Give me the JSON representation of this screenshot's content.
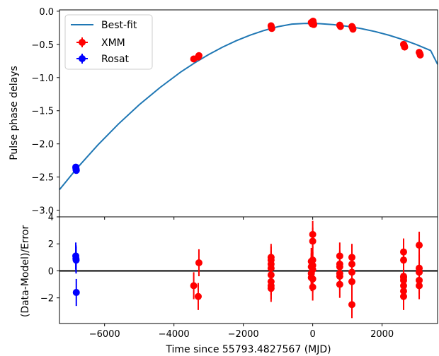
{
  "chart_data": [
    {
      "type": "scatter",
      "panel": "top",
      "title": "",
      "xlabel": "",
      "ylabel": "Pulse phase delays",
      "xlim": [
        -7300,
        3600
      ],
      "ylim": [
        -3.1,
        0.02
      ],
      "yticks": [
        0.0,
        -0.5,
        -1.0,
        -1.5,
        -2.0,
        -2.5,
        -3.0
      ],
      "ytick_labels": [
        "0.0",
        "−0.5",
        "−1.0",
        "−1.5",
        "−2.0",
        "−2.5",
        "−3.0"
      ],
      "legend": {
        "placement": "upper-left",
        "entries": [
          "Best-fit",
          "XMM",
          "Rosat"
        ]
      },
      "best_fit": {
        "name": "Best-fit",
        "color": "#1f77b4",
        "x": [
          -7300,
          -6800,
          -6200,
          -5600,
          -5000,
          -4400,
          -3800,
          -3400,
          -3000,
          -2600,
          -2200,
          -1800,
          -1400,
          -1000,
          -600,
          -200,
          0,
          200,
          600,
          1000,
          1400,
          1800,
          2200,
          2600,
          3000,
          3400,
          3600
        ],
        "y": [
          -2.69,
          -2.37,
          -2.02,
          -1.7,
          -1.41,
          -1.15,
          -0.915,
          -0.778,
          -0.654,
          -0.542,
          -0.444,
          -0.36,
          -0.29,
          -0.233,
          -0.194,
          -0.184,
          -0.185,
          -0.188,
          -0.202,
          -0.227,
          -0.262,
          -0.307,
          -0.362,
          -0.428,
          -0.505,
          -0.593,
          -0.8
        ]
      },
      "series": [
        {
          "name": "XMM",
          "color": "#ff0000",
          "x": [
            -3430,
            -3300,
            -3280,
            -1200,
            -1190,
            -1180,
            -40,
            -20,
            0,
            10,
            20,
            30,
            780,
            800,
            1130,
            1150,
            1160,
            2620,
            2640,
            2650,
            3070,
            3090,
            3100
          ],
          "y": [
            -0.72,
            -0.69,
            -0.67,
            -0.22,
            -0.24,
            -0.26,
            -0.17,
            -0.19,
            -0.16,
            -0.15,
            -0.18,
            -0.2,
            -0.21,
            -0.23,
            -0.23,
            -0.25,
            -0.27,
            -0.5,
            -0.52,
            -0.54,
            -0.62,
            -0.64,
            -0.66
          ]
        },
        {
          "name": "Rosat",
          "color": "#0000ff",
          "x": [
            -6830,
            -6825,
            -6820,
            -6815
          ],
          "y": [
            -2.35,
            -2.37,
            -2.39,
            -2.4
          ]
        }
      ]
    },
    {
      "type": "scatter",
      "panel": "bottom",
      "title": "",
      "xlabel": "Time since 55793.4827567 (MJD)",
      "ylabel": "(Data-Model)/Error",
      "xlim": [
        -7300,
        3600
      ],
      "ylim": [
        -3.9,
        4.0
      ],
      "xticks": [
        -6000,
        -4000,
        -2000,
        0,
        2000
      ],
      "xtick_labels": [
        "−6000",
        "−4000",
        "−2000",
        "0",
        "2000"
      ],
      "yticks": [
        4,
        2,
        0,
        -2
      ],
      "ytick_labels": [
        "4",
        "2",
        "0",
        "−2"
      ],
      "zero_line": 0,
      "series": [
        {
          "name": "XMM",
          "color": "#ff0000",
          "x": [
            -3430,
            -3300,
            -3280,
            -1200,
            -1200,
            -1200,
            -1200,
            -1200,
            -1200,
            -1200,
            -1200,
            -40,
            -40,
            -40,
            -40,
            0,
            0,
            0,
            0,
            0,
            0,
            0,
            780,
            780,
            780,
            780,
            780,
            780,
            1130,
            1130,
            1130,
            1130,
            1130,
            2620,
            2620,
            2620,
            2620,
            2620,
            2620,
            2620,
            2620,
            3070,
            3070,
            3070,
            3070,
            3070
          ],
          "y": [
            -1.1,
            -1.9,
            0.6,
            0.8,
            0.5,
            0.2,
            -0.3,
            -0.8,
            -1.1,
            -1.3,
            1.0,
            0.7,
            0.3,
            -0.2,
            -0.5,
            2.7,
            2.2,
            0.8,
            0.4,
            0.1,
            -0.6,
            -1.2,
            1.1,
            0.5,
            0.3,
            -0.2,
            -0.4,
            -1.0,
            1.0,
            0.5,
            -0.1,
            -0.8,
            -2.5,
            1.4,
            0.8,
            -0.5,
            -0.7,
            -1.1,
            -1.5,
            -1.9,
            -0.4,
            1.9,
            0.2,
            -0.1,
            -0.7,
            -1.1
          ]
        },
        {
          "name": "Rosat",
          "color": "#0000ff",
          "x": [
            -6830,
            -6825,
            -6820,
            -6815
          ],
          "y": [
            1.1,
            0.9,
            0.8,
            -1.6
          ]
        }
      ]
    }
  ]
}
